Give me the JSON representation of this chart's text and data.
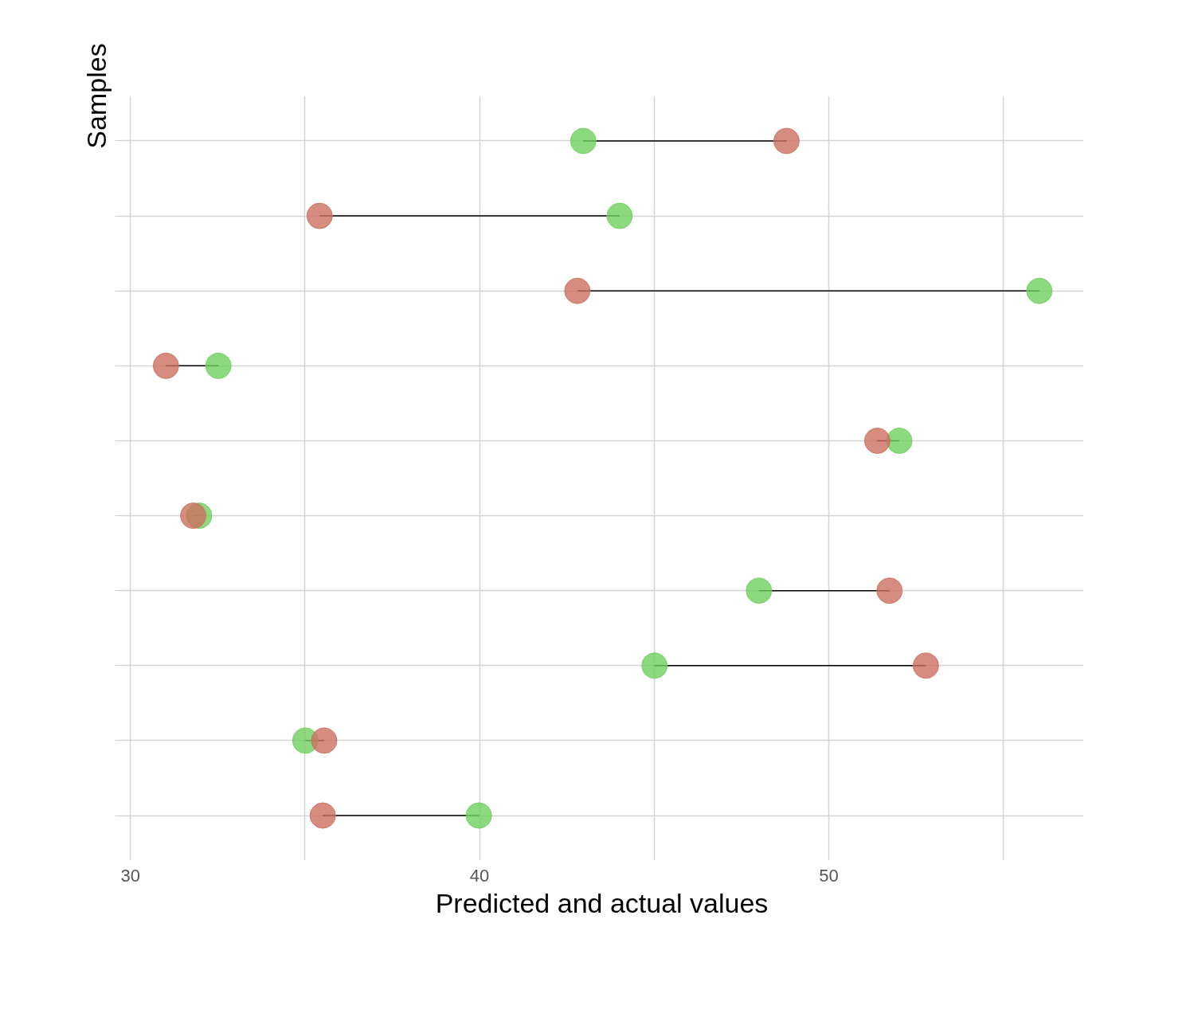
{
  "chart_data": {
    "type": "scatter",
    "orientation": "horizontal",
    "xlabel": "Predicted and actual values",
    "ylabel": "Samples",
    "categories": [
      null,
      null,
      null,
      null,
      null,
      null,
      null,
      null,
      null,
      null
    ],
    "series": [
      {
        "color": "#6fcf5f",
        "values": [
          42.97,
          44.01,
          56.03,
          32.52,
          52.02,
          31.97,
          48.0,
          45.01,
          35.01,
          39.98
        ]
      },
      {
        "color": "#cc6f5e",
        "values": [
          48.79,
          35.42,
          42.8,
          31.02,
          51.39,
          31.8,
          51.74,
          52.78,
          35.55,
          35.51
        ]
      }
    ],
    "xlim": [
      29.7,
      57.3
    ],
    "xticks": [
      30,
      {
        "value": 35,
        "label": null
      },
      40,
      {
        "value": 45,
        "label": null
      },
      50,
      {
        "value": 55,
        "label": null
      }
    ],
    "grid": true,
    "marker": "circle"
  }
}
